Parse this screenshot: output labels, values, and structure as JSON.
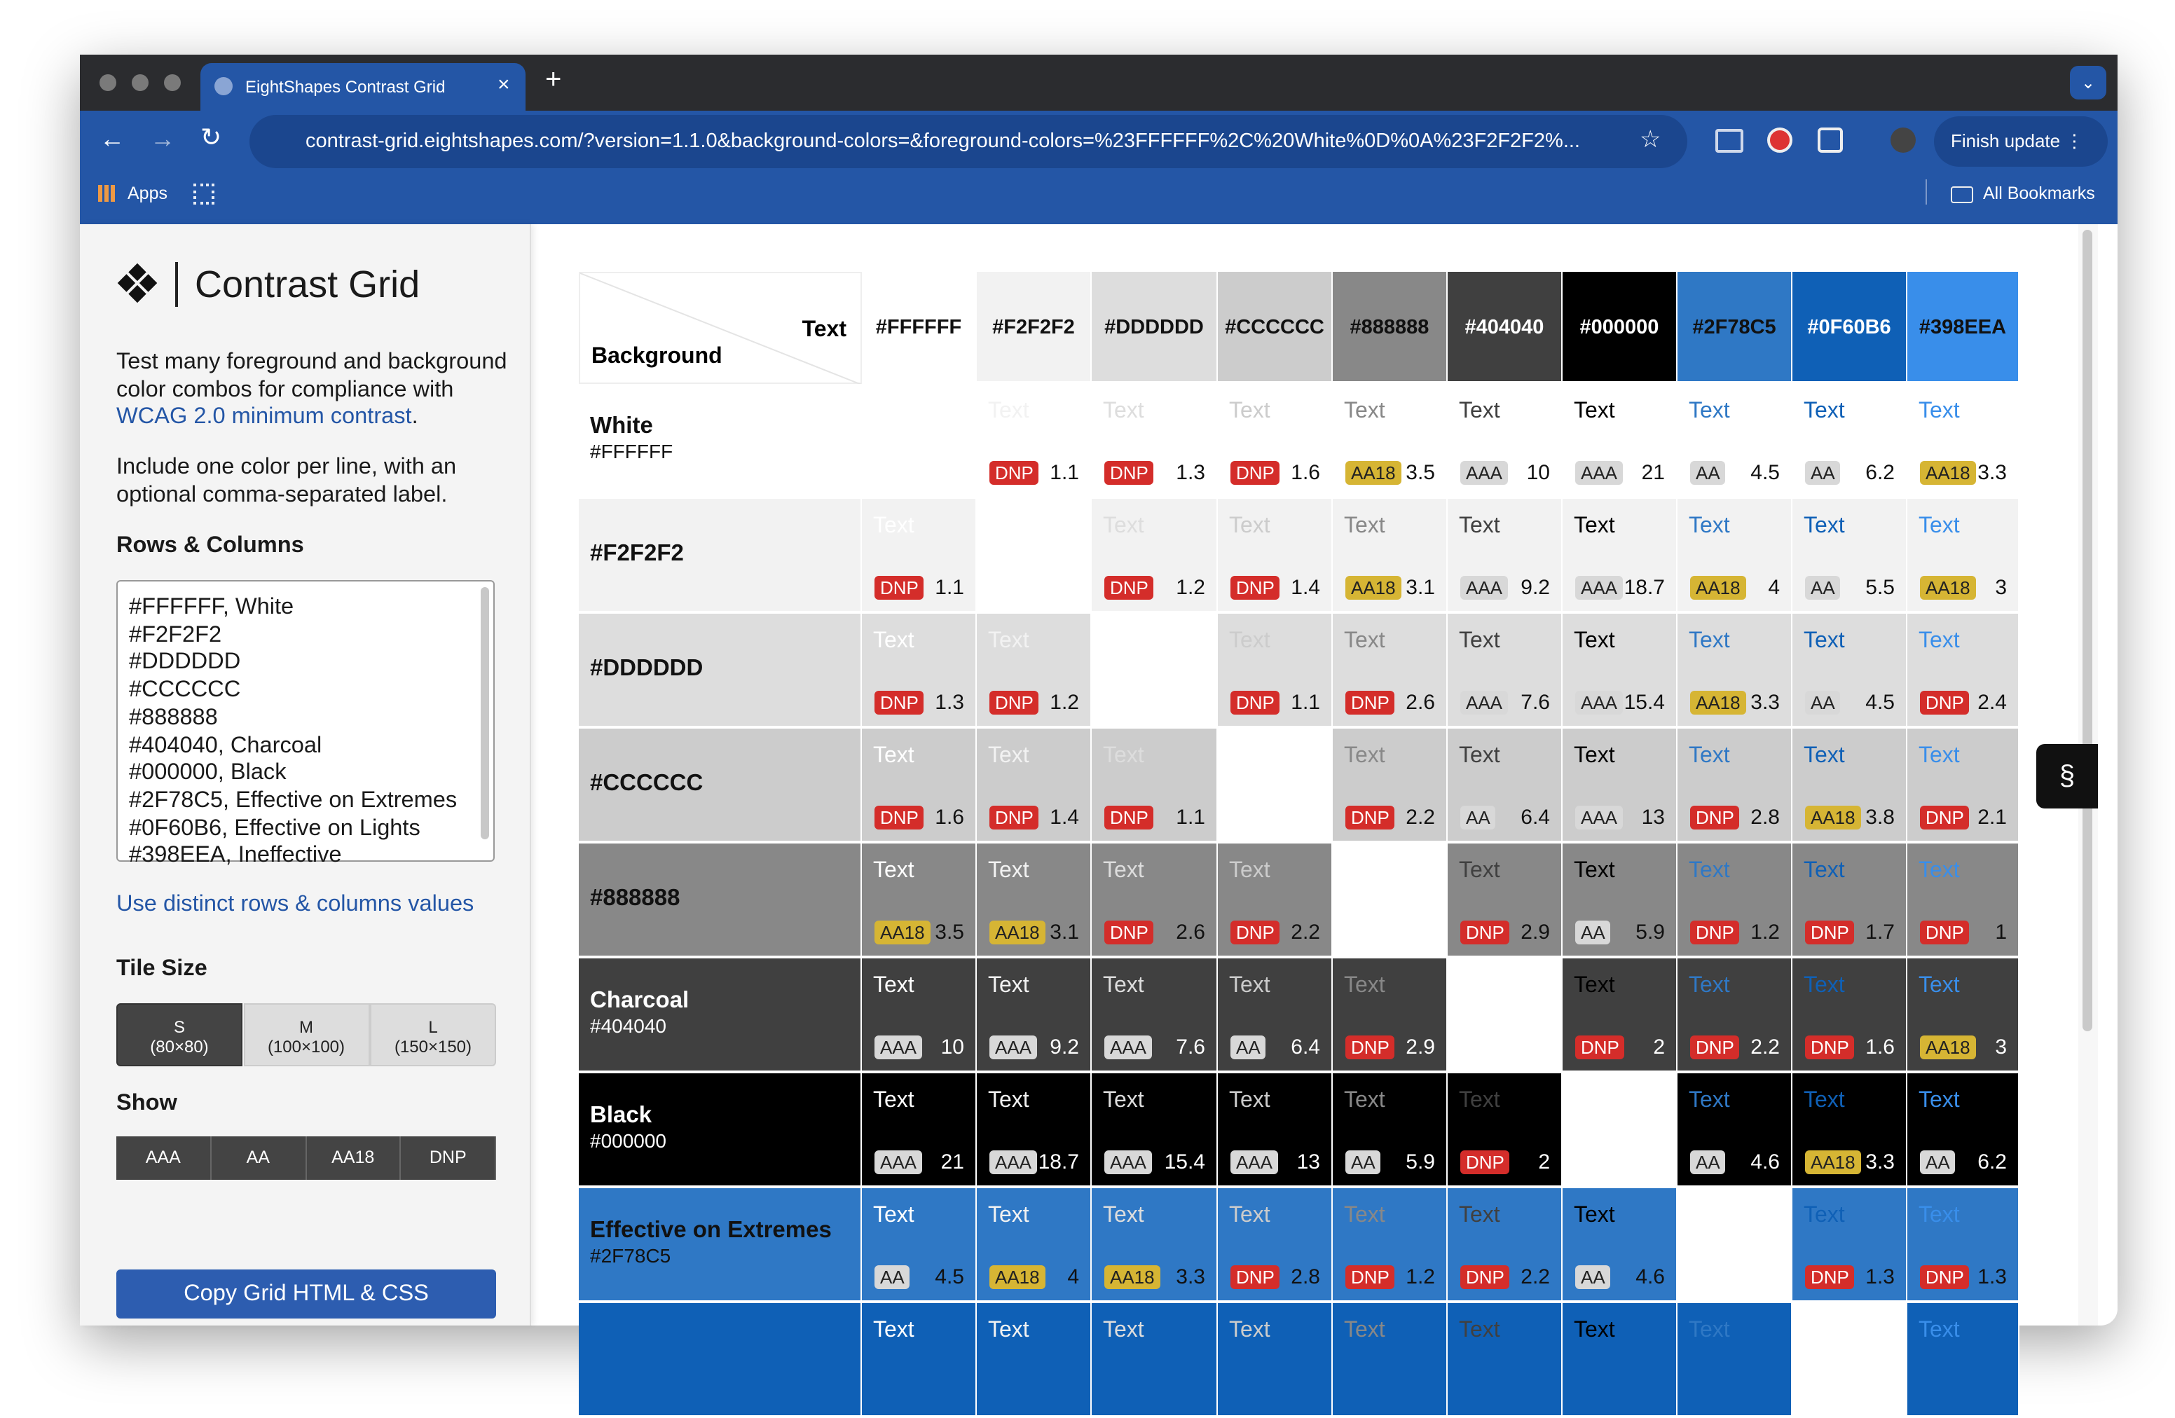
{
  "browser": {
    "tab_title": "EightShapes Contrast Grid",
    "url": "contrast-grid.eightshapes.com/?version=1.1.0&background-colors=&foreground-colors=%23FFFFFF%2C%20White%0D%0A%23F2F2F2%...",
    "apps": "Apps",
    "all_bookmarks": "All Bookmarks",
    "update_button": "Finish update"
  },
  "sidebar": {
    "title": "Contrast Grid",
    "intro": "Test many foreground and background color combos for compliance with",
    "intro_link": "WCAG 2.0 minimum contrast",
    "intro_end": ".",
    "instructions": "Include one color per line, with an optional comma-separated label.",
    "rows_columns_heading": "Rows & Columns",
    "color_lines": [
      "#FFFFFF, White",
      "#F2F2F2",
      "#DDDDDD",
      "#CCCCCC",
      "#888888",
      "#404040, Charcoal",
      "#000000, Black",
      "#2F78C5, Effective on Extremes",
      "#0F60B6, Effective on Lights",
      "#398EEA, Ineffective"
    ],
    "distinct_link": "Use distinct rows & columns values",
    "tile_size_heading": "Tile Size",
    "tile_sizes": [
      {
        "name": "S",
        "size": "(80×80)"
      },
      {
        "name": "M",
        "size": "(100×100)"
      },
      {
        "name": "L",
        "size": "(150×150)"
      }
    ],
    "show_heading": "Show",
    "show_options": [
      "AAA",
      "AA",
      "AA18",
      "DNP"
    ],
    "copy_button": "Copy Grid HTML & CSS"
  },
  "grid": {
    "corner_foreground": "Text",
    "corner_background": "Background",
    "sample_text": "Text",
    "columns": [
      "#FFFFFF",
      "#F2F2F2",
      "#DDDDDD",
      "#CCCCCC",
      "#888888",
      "#404040",
      "#000000",
      "#2F78C5",
      "#0F60B6",
      "#398EEA"
    ],
    "rows": [
      {
        "label": "White",
        "hex": "#FFFFFF",
        "cells": [
          null,
          {
            "rating": "DNP",
            "ratio": 1.1
          },
          {
            "rating": "DNP",
            "ratio": 1.3
          },
          {
            "rating": "DNP",
            "ratio": 1.6
          },
          {
            "rating": "AA18",
            "ratio": 3.5
          },
          {
            "rating": "AAA",
            "ratio": 10
          },
          {
            "rating": "AAA",
            "ratio": 21
          },
          {
            "rating": "AA",
            "ratio": 4.5
          },
          {
            "rating": "AA",
            "ratio": 6.2
          },
          {
            "rating": "AA18",
            "ratio": 3.3
          }
        ]
      },
      {
        "hex": "#F2F2F2",
        "cells": [
          {
            "rating": "DNP",
            "ratio": 1.1
          },
          null,
          {
            "rating": "DNP",
            "ratio": 1.2
          },
          {
            "rating": "DNP",
            "ratio": 1.4
          },
          {
            "rating": "AA18",
            "ratio": 3.1
          },
          {
            "rating": "AAA",
            "ratio": 9.2
          },
          {
            "rating": "AAA",
            "ratio": 18.7
          },
          {
            "rating": "AA18",
            "ratio": 4
          },
          {
            "rating": "AA",
            "ratio": 5.5
          },
          {
            "rating": "AA18",
            "ratio": 3
          }
        ]
      },
      {
        "hex": "#DDDDDD",
        "cells": [
          {
            "rating": "DNP",
            "ratio": 1.3
          },
          {
            "rating": "DNP",
            "ratio": 1.2
          },
          null,
          {
            "rating": "DNP",
            "ratio": 1.1
          },
          {
            "rating": "DNP",
            "ratio": 2.6
          },
          {
            "rating": "AAA",
            "ratio": 7.6
          },
          {
            "rating": "AAA",
            "ratio": 15.4
          },
          {
            "rating": "AA18",
            "ratio": 3.3
          },
          {
            "rating": "AA",
            "ratio": 4.5
          },
          {
            "rating": "DNP",
            "ratio": 2.4
          }
        ]
      },
      {
        "hex": "#CCCCCC",
        "cells": [
          {
            "rating": "DNP",
            "ratio": 1.6
          },
          {
            "rating": "DNP",
            "ratio": 1.4
          },
          {
            "rating": "DNP",
            "ratio": 1.1
          },
          null,
          {
            "rating": "DNP",
            "ratio": 2.2
          },
          {
            "rating": "AA",
            "ratio": 6.4
          },
          {
            "rating": "AAA",
            "ratio": 13
          },
          {
            "rating": "DNP",
            "ratio": 2.8
          },
          {
            "rating": "AA18",
            "ratio": 3.8
          },
          {
            "rating": "DNP",
            "ratio": 2.1
          }
        ]
      },
      {
        "hex": "#888888",
        "cells": [
          {
            "rating": "AA18",
            "ratio": 3.5
          },
          {
            "rating": "AA18",
            "ratio": 3.1
          },
          {
            "rating": "DNP",
            "ratio": 2.6
          },
          {
            "rating": "DNP",
            "ratio": 2.2
          },
          null,
          {
            "rating": "DNP",
            "ratio": 2.9
          },
          {
            "rating": "AA",
            "ratio": 5.9
          },
          {
            "rating": "DNP",
            "ratio": 1.2
          },
          {
            "rating": "DNP",
            "ratio": 1.7
          },
          {
            "rating": "DNP",
            "ratio": 1
          }
        ]
      },
      {
        "label": "Charcoal",
        "hex": "#404040",
        "cells": [
          {
            "rating": "AAA",
            "ratio": 10
          },
          {
            "rating": "AAA",
            "ratio": 9.2
          },
          {
            "rating": "AAA",
            "ratio": 7.6
          },
          {
            "rating": "AA",
            "ratio": 6.4
          },
          {
            "rating": "DNP",
            "ratio": 2.9
          },
          null,
          {
            "rating": "DNP",
            "ratio": 2
          },
          {
            "rating": "DNP",
            "ratio": 2.2
          },
          {
            "rating": "DNP",
            "ratio": 1.6
          },
          {
            "rating": "AA18",
            "ratio": 3
          }
        ]
      },
      {
        "label": "Black",
        "hex": "#000000",
        "cells": [
          {
            "rating": "AAA",
            "ratio": 21
          },
          {
            "rating": "AAA",
            "ratio": 18.7
          },
          {
            "rating": "AAA",
            "ratio": 15.4
          },
          {
            "rating": "AAA",
            "ratio": 13
          },
          {
            "rating": "AA",
            "ratio": 5.9
          },
          {
            "rating": "DNP",
            "ratio": 2
          },
          null,
          {
            "rating": "AA",
            "ratio": 4.6
          },
          {
            "rating": "AA18",
            "ratio": 3.3
          },
          {
            "rating": "AA",
            "ratio": 6.2
          }
        ]
      },
      {
        "label": "Effective on Extremes",
        "hex": "#2F78C5",
        "cells": [
          {
            "rating": "AA",
            "ratio": 4.5
          },
          {
            "rating": "AA18",
            "ratio": 4
          },
          {
            "rating": "AA18",
            "ratio": 3.3
          },
          {
            "rating": "DNP",
            "ratio": 2.8
          },
          {
            "rating": "DNP",
            "ratio": 1.2
          },
          {
            "rating": "DNP",
            "ratio": 2.2
          },
          {
            "rating": "AA",
            "ratio": 4.6
          },
          null,
          {
            "rating": "DNP",
            "ratio": 1.3
          },
          {
            "rating": "DNP",
            "ratio": 1.3
          }
        ]
      }
    ]
  }
}
